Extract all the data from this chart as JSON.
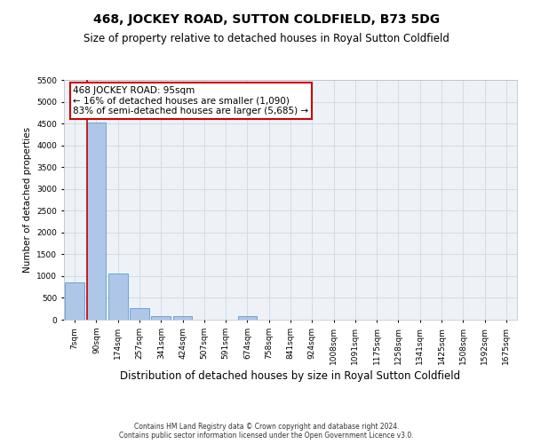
{
  "title": "468, JOCKEY ROAD, SUTTON COLDFIELD, B73 5DG",
  "subtitle": "Size of property relative to detached houses in Royal Sutton Coldfield",
  "xlabel": "Distribution of detached houses by size in Royal Sutton Coldfield",
  "ylabel": "Number of detached properties",
  "footer_line1": "Contains HM Land Registry data © Crown copyright and database right 2024.",
  "footer_line2": "Contains public sector information licensed under the Open Government Licence v3.0.",
  "categories": [
    "7sqm",
    "90sqm",
    "174sqm",
    "257sqm",
    "341sqm",
    "424sqm",
    "507sqm",
    "591sqm",
    "674sqm",
    "758sqm",
    "841sqm",
    "924sqm",
    "1008sqm",
    "1091sqm",
    "1175sqm",
    "1258sqm",
    "1341sqm",
    "1425sqm",
    "1508sqm",
    "1592sqm",
    "1675sqm"
  ],
  "values": [
    850,
    4530,
    1050,
    260,
    90,
    90,
    0,
    0,
    75,
    0,
    0,
    0,
    0,
    0,
    0,
    0,
    0,
    0,
    0,
    0,
    0
  ],
  "bar_color": "#aec6e8",
  "bar_edge_color": "#5b9bd5",
  "ylim": [
    0,
    5500
  ],
  "yticks": [
    0,
    500,
    1000,
    1500,
    2000,
    2500,
    3000,
    3500,
    4000,
    4500,
    5000,
    5500
  ],
  "annotation_text": "468 JOCKEY ROAD: 95sqm\n← 16% of detached houses are smaller (1,090)\n83% of semi-detached houses are larger (5,685) →",
  "property_line_x": 1,
  "annotation_box_color": "#ffffff",
  "annotation_box_edge_color": "#cc0000",
  "grid_color": "#d0dce8",
  "background_color": "#eef2f7",
  "title_fontsize": 10,
  "subtitle_fontsize": 8.5,
  "ylabel_fontsize": 7.5,
  "xlabel_fontsize": 8.5,
  "tick_fontsize": 6.5,
  "annotation_fontsize": 7.5,
  "footer_fontsize": 5.5
}
